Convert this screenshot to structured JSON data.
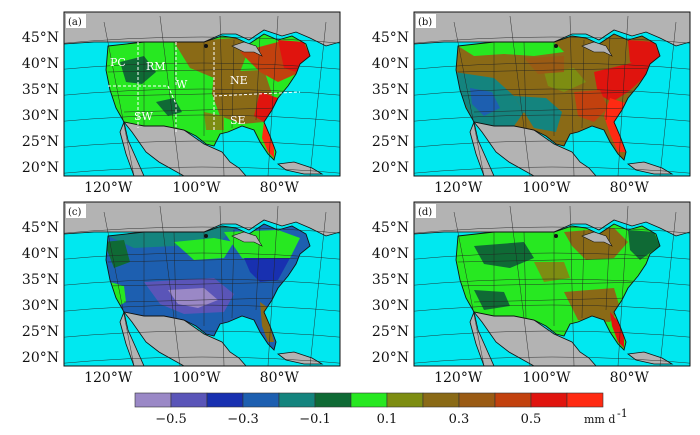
{
  "figure": {
    "panels": [
      {
        "label": "(a)",
        "scheme": "a",
        "regions": [
          "PC",
          "RM",
          "W",
          "NE",
          "SW",
          "SE"
        ]
      },
      {
        "label": "(b)",
        "scheme": "b",
        "regions": []
      },
      {
        "label": "(c)",
        "scheme": "c",
        "regions": []
      },
      {
        "label": "(d)",
        "scheme": "d",
        "regions": []
      }
    ],
    "lat_labels": [
      "45°N",
      "40°N",
      "35°N",
      "30°N",
      "25°N",
      "20°N"
    ],
    "lon_labels": [
      "120°W",
      "100°W",
      "80°W"
    ]
  },
  "colorbar": {
    "colors": [
      "#9a88c6",
      "#5a55b8",
      "#1830b0",
      "#1d5fb0",
      "#14847e",
      "#0f6a35",
      "#27e821",
      "#7d8d12",
      "#8a6a16",
      "#9a5b14",
      "#c2410e",
      "#e0140e",
      "#ff2a12"
    ],
    "tick_labels": [
      "-0.5",
      "-0.3",
      "-0.1",
      "0.1",
      "0.3",
      "0.5"
    ],
    "unit": "mm d",
    "unit_exponent": "-1"
  },
  "map_colors": {
    "ocean": "#00e8f0",
    "land": "#b3b3b3",
    "border": "#111111"
  }
}
